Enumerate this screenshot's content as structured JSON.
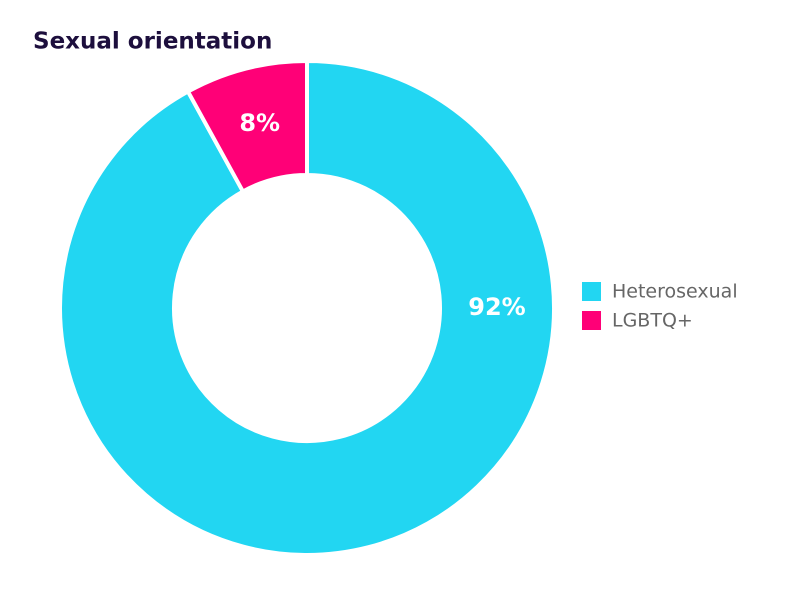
{
  "chart_data": {
    "type": "pie",
    "title": "Sexual orientation",
    "donut": true,
    "categories": [
      "Heterosexual",
      "LGBTQ+"
    ],
    "values": [
      92,
      8
    ],
    "value_labels": [
      "92%",
      "8%"
    ],
    "colors": [
      "#22d6f2",
      "#ff0077"
    ]
  }
}
